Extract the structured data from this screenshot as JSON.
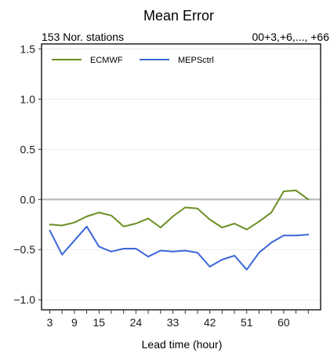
{
  "chart_data": {
    "type": "line",
    "title": "Mean Error",
    "subtitle_left": "153 Nor. stations",
    "subtitle_right": "00+3,+6,..., +66",
    "xlabel": "Lead time (hour)",
    "ylabel": "",
    "xlim": [
      1,
      69
    ],
    "ylim": [
      -1.1,
      1.55
    ],
    "x_ticks": [
      3,
      9,
      15,
      24,
      33,
      42,
      51,
      60
    ],
    "y_ticks": [
      -1.0,
      -0.5,
      0.0,
      0.5,
      1.0,
      1.5
    ],
    "y_tick_labels": [
      "−1.0",
      "−0.5",
      "0.0",
      "0.5",
      "1.0",
      "1.5"
    ],
    "reference_line": 0,
    "grid": "horizontal",
    "legend_position": "top-left",
    "x": [
      3,
      6,
      9,
      12,
      15,
      18,
      21,
      24,
      27,
      30,
      33,
      36,
      39,
      42,
      45,
      48,
      51,
      54,
      57,
      60,
      63,
      66
    ],
    "series": [
      {
        "name": "ECMWF",
        "color": "#6b8e23",
        "values": [
          -0.25,
          -0.26,
          -0.23,
          -0.17,
          -0.13,
          -0.16,
          -0.27,
          -0.24,
          -0.19,
          -0.28,
          -0.17,
          -0.08,
          -0.09,
          -0.2,
          -0.28,
          -0.24,
          -0.3,
          -0.22,
          -0.13,
          0.08,
          0.09,
          0.0
        ]
      },
      {
        "name": "MEPSctrl",
        "color": "#3b66d9",
        "values": [
          -0.31,
          -0.55,
          -0.41,
          -0.27,
          -0.47,
          -0.52,
          -0.49,
          -0.49,
          -0.57,
          -0.51,
          -0.52,
          -0.51,
          -0.53,
          -0.67,
          -0.6,
          -0.56,
          -0.7,
          -0.53,
          -0.43,
          -0.36,
          -0.36,
          -0.35
        ]
      }
    ],
    "colors": {
      "grid": "#ebebeb",
      "reference": "#bdbdbd",
      "frame": "#000000"
    }
  }
}
